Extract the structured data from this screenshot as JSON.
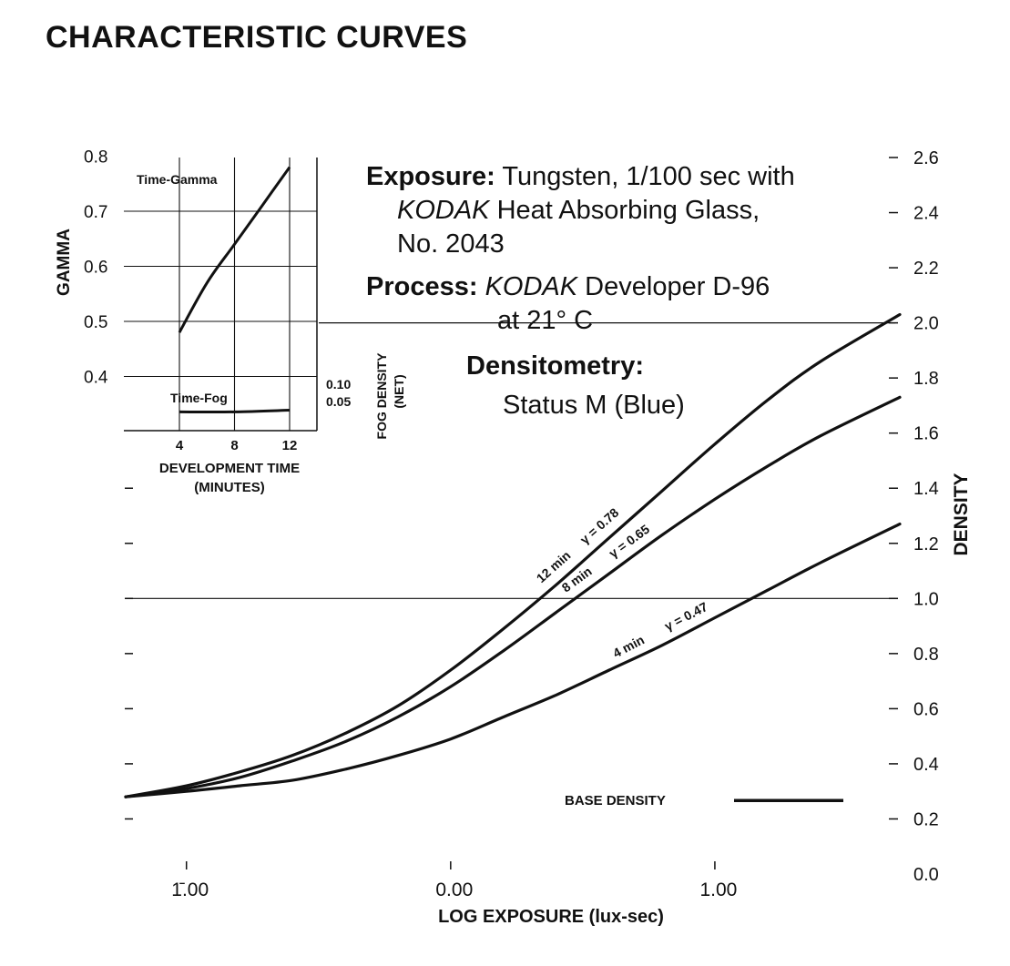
{
  "page": {
    "title": "CHARACTERISTIC CURVES"
  },
  "notes": {
    "exposure_label": "Exposure:",
    "exposure_text": "Tungsten, 1/100 sec with",
    "exposure_line2_brand": "KODAK",
    "exposure_line2_text": "Heat Absorbing Glass,",
    "exposure_line3": "No. 2043",
    "process_label": "Process:",
    "process_brand": "KODAK",
    "process_text": "Developer D-96",
    "process_line2": "at 21° C",
    "densitometry_label": "Densitometry:",
    "densitometry_text": "Status M (Blue)"
  },
  "chart_data": [
    {
      "type": "line",
      "title": "CHARACTERISTIC CURVES",
      "xlabel": "LOG EXPOSURE (lux-sec)",
      "ylabel": "DENSITY",
      "xlim": [
        -1.23,
        1.7
      ],
      "ylim": [
        0.0,
        2.6
      ],
      "x_ticks": [
        -1.0,
        0.0,
        1.0
      ],
      "x_tick_labels": [
        "1̄.00",
        "0.00",
        "1.00"
      ],
      "y_ticks": [
        0.2,
        0.4,
        0.6,
        0.8,
        1.0,
        1.2,
        1.4,
        1.6,
        1.8,
        2.0,
        2.2,
        2.4,
        2.6
      ],
      "y_tick_labels": [
        "0.2",
        "0.4",
        "0.6",
        "0.8",
        "1.0",
        "1.2",
        "1.4",
        "1.6",
        "1.8",
        "2.0",
        "2.2",
        "2.4",
        "2.6"
      ],
      "y_zero_label": "0.0",
      "reference_lines": [
        1.0,
        2.0
      ],
      "series": [
        {
          "name": "12 min",
          "gamma_label": "γ = 0.78",
          "x": [
            -1.23,
            -1.0,
            -0.8,
            -0.6,
            -0.4,
            -0.2,
            0.0,
            0.2,
            0.4,
            0.6,
            0.8,
            1.0,
            1.2,
            1.4,
            1.7
          ],
          "y": [
            0.28,
            0.32,
            0.37,
            0.43,
            0.51,
            0.61,
            0.74,
            0.89,
            1.05,
            1.22,
            1.39,
            1.56,
            1.72,
            1.86,
            2.03
          ]
        },
        {
          "name": "8 min",
          "gamma_label": "γ = 0.65",
          "x": [
            -1.23,
            -1.0,
            -0.8,
            -0.6,
            -0.4,
            -0.2,
            0.0,
            0.2,
            0.4,
            0.6,
            0.8,
            1.0,
            1.2,
            1.4,
            1.7
          ],
          "y": [
            0.28,
            0.31,
            0.35,
            0.41,
            0.48,
            0.57,
            0.68,
            0.81,
            0.95,
            1.09,
            1.23,
            1.36,
            1.48,
            1.59,
            1.73
          ]
        },
        {
          "name": "4 min",
          "gamma_label": "γ = 0.47",
          "x": [
            -1.23,
            -1.0,
            -0.8,
            -0.6,
            -0.4,
            -0.2,
            0.0,
            0.2,
            0.4,
            0.6,
            0.8,
            1.0,
            1.2,
            1.4,
            1.7
          ],
          "y": [
            0.28,
            0.3,
            0.32,
            0.34,
            0.38,
            0.43,
            0.49,
            0.57,
            0.65,
            0.74,
            0.83,
            0.93,
            1.03,
            1.13,
            1.27
          ]
        }
      ],
      "base_density": {
        "label": "BASE DENSITY",
        "value": 0.26
      }
    },
    {
      "type": "line",
      "title": "Time-Gamma / Time-Fog inset",
      "xlabel": "DEVELOPMENT TIME",
      "xlabel2": "(MINUTES)",
      "ylabel": "GAMMA",
      "y2label": "FOG DENSITY",
      "y2label2": "(NET)",
      "x_ticks": [
        4,
        8,
        12
      ],
      "x_tick_labels": [
        "4",
        "8",
        "12"
      ],
      "y_ticks": [
        0.4,
        0.5,
        0.6,
        0.7,
        0.8
      ],
      "y_tick_labels": [
        "0.4",
        "0.5",
        "0.6",
        "0.7",
        "0.8"
      ],
      "y2_ticks": [
        0.05,
        0.1
      ],
      "y2_tick_labels": [
        "0.05",
        "0.10"
      ],
      "series": [
        {
          "name": "Time-Gamma",
          "x": [
            4,
            6,
            8,
            10,
            12
          ],
          "y": [
            0.48,
            0.57,
            0.64,
            0.71,
            0.78
          ]
        },
        {
          "name": "Time-Fog",
          "x": [
            4,
            8,
            12
          ],
          "y": [
            0.02,
            0.02,
            0.025
          ]
        }
      ]
    }
  ]
}
